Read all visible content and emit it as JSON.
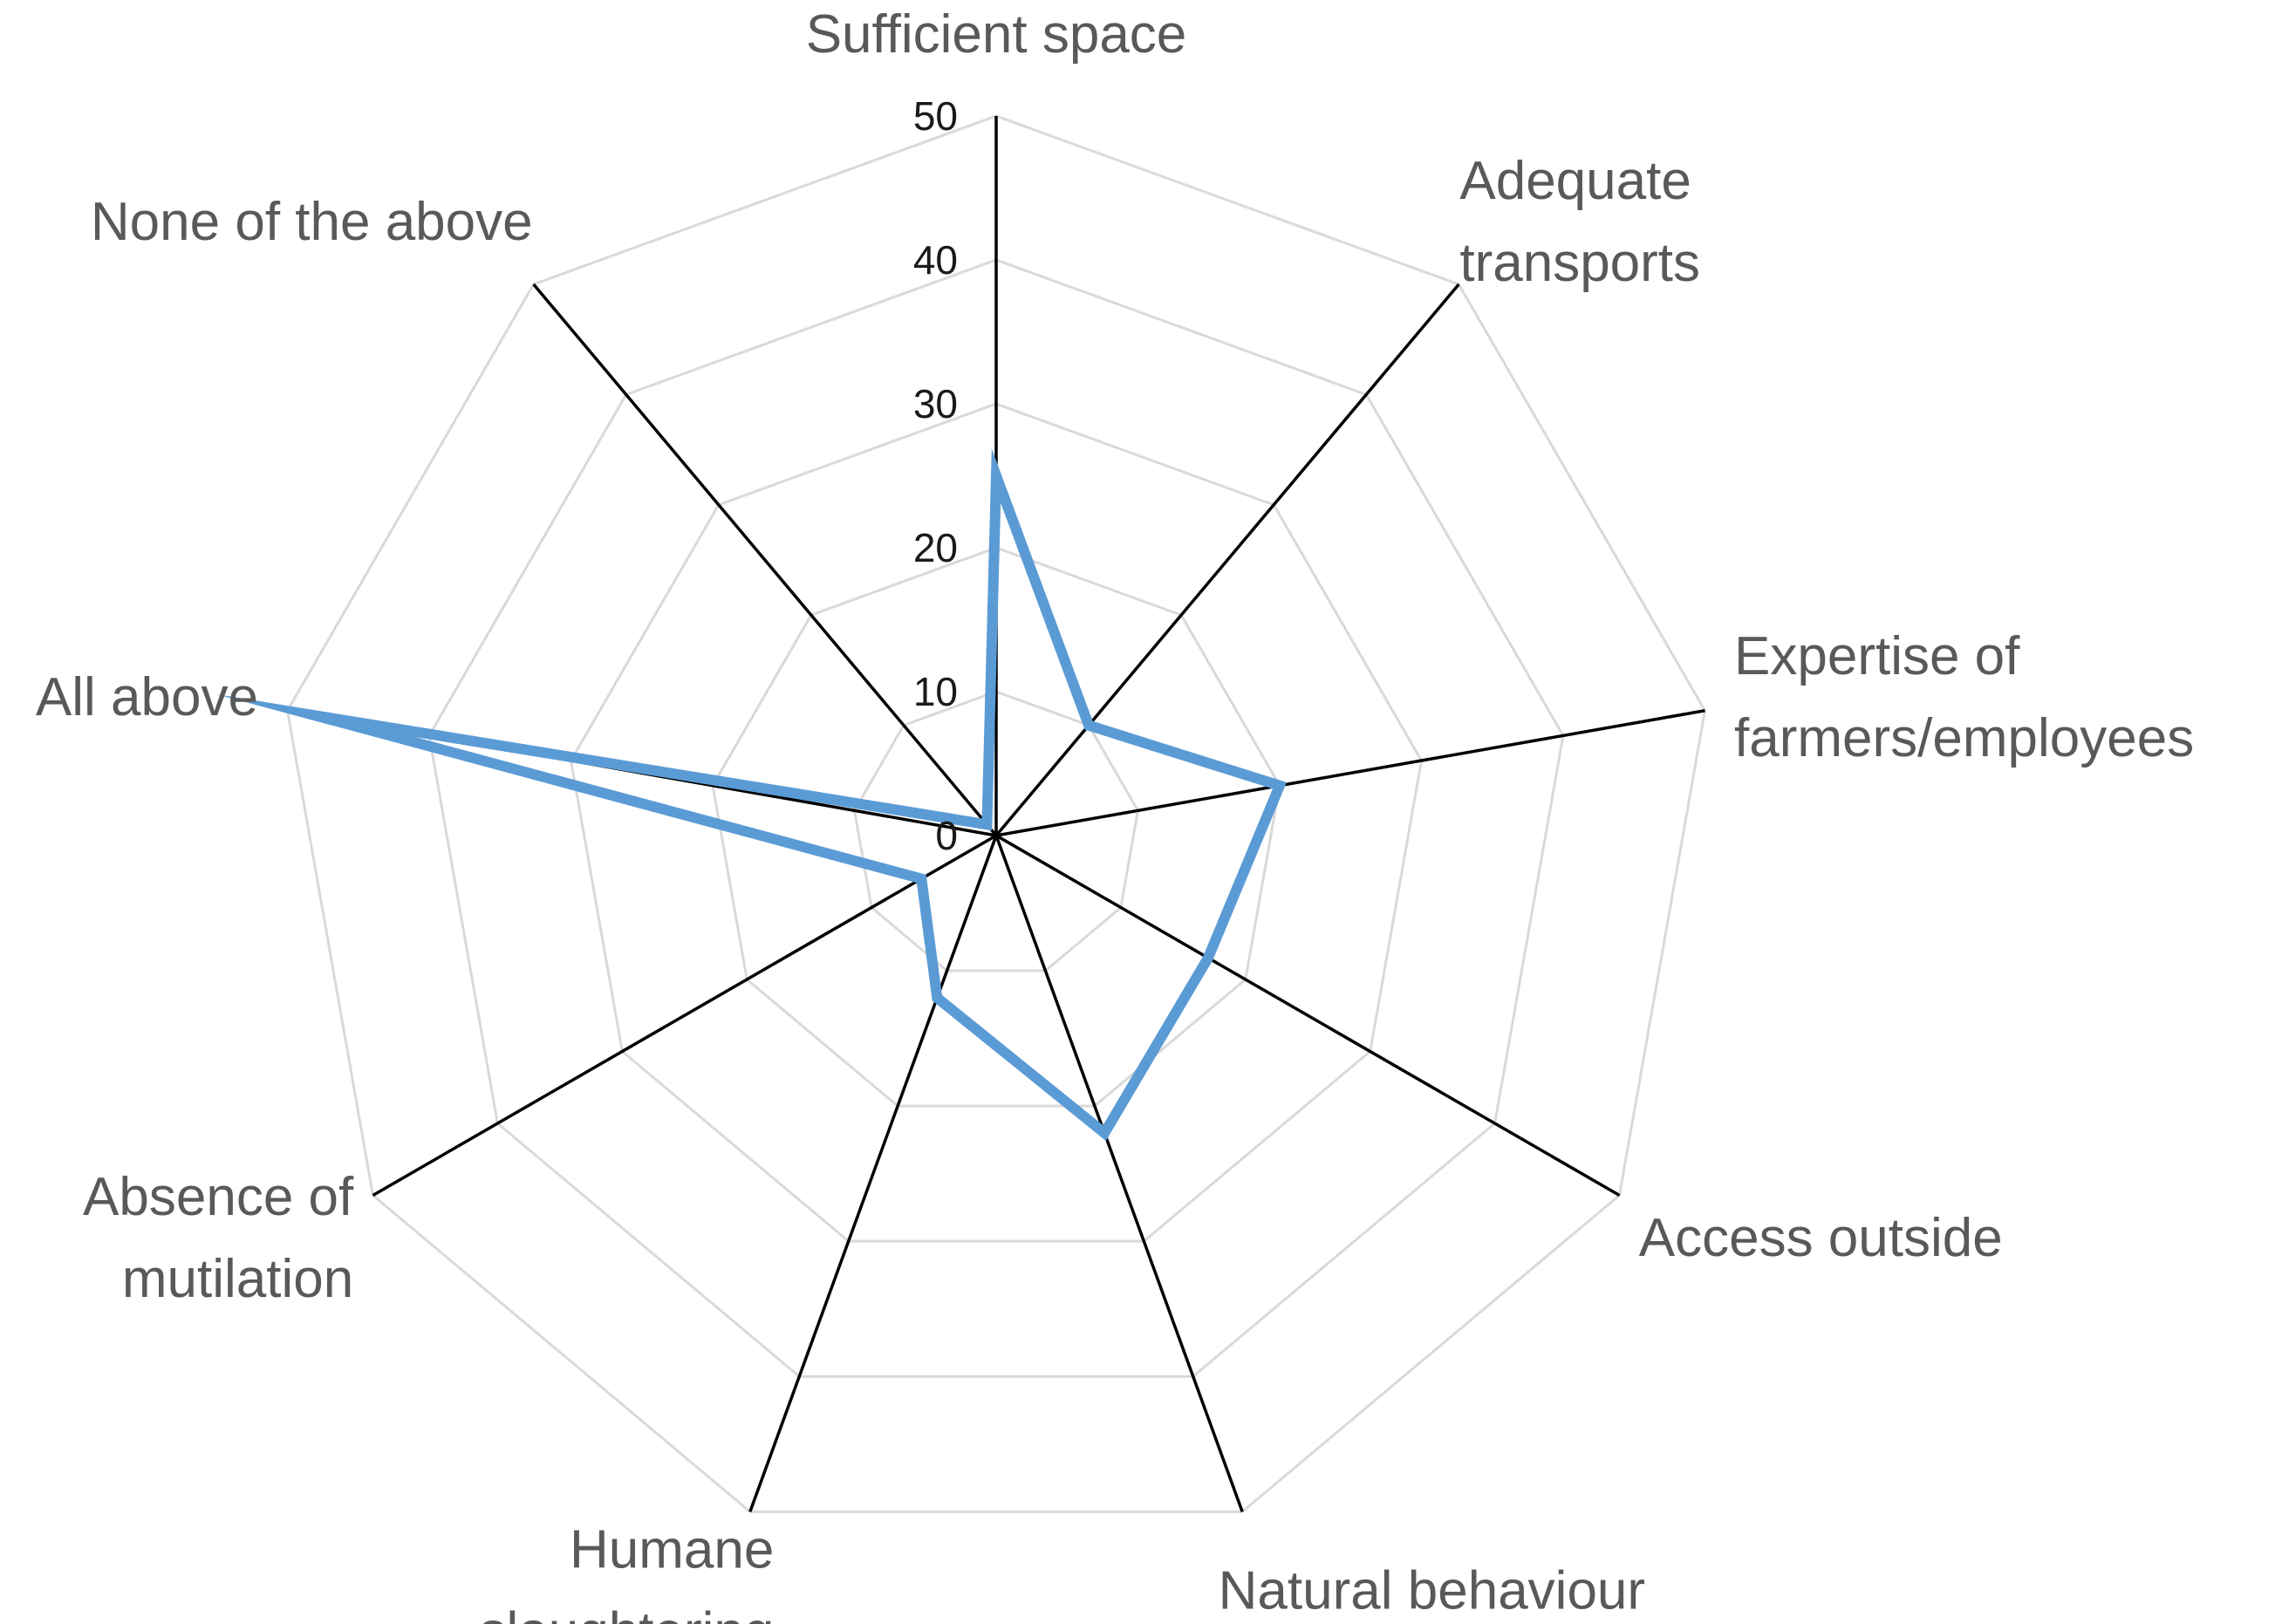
{
  "chart_data": {
    "type": "radar",
    "title": "",
    "categories": [
      [
        "Sufficient space"
      ],
      [
        "Adequate",
        "transports"
      ],
      [
        "Expertise of",
        "farmers/employees"
      ],
      [
        "Access outside"
      ],
      [
        "Natural behaviour"
      ],
      [
        "Humane",
        "slaughtering"
      ],
      [
        "Absence of",
        "mutilation"
      ],
      [
        "All above"
      ],
      [
        "None of the above"
      ]
    ],
    "series": [
      {
        "values": [
          25,
          10,
          20,
          17,
          22,
          12,
          6,
          48,
          1
        ]
      }
    ],
    "rlim": [
      0,
      50
    ],
    "ticks": [
      0,
      10,
      20,
      30,
      40,
      50
    ],
    "grid": true,
    "colors": {
      "series": "#5b9bd5",
      "grid": "#d9d9d9",
      "axis": "#000000",
      "label": "#595959"
    }
  }
}
